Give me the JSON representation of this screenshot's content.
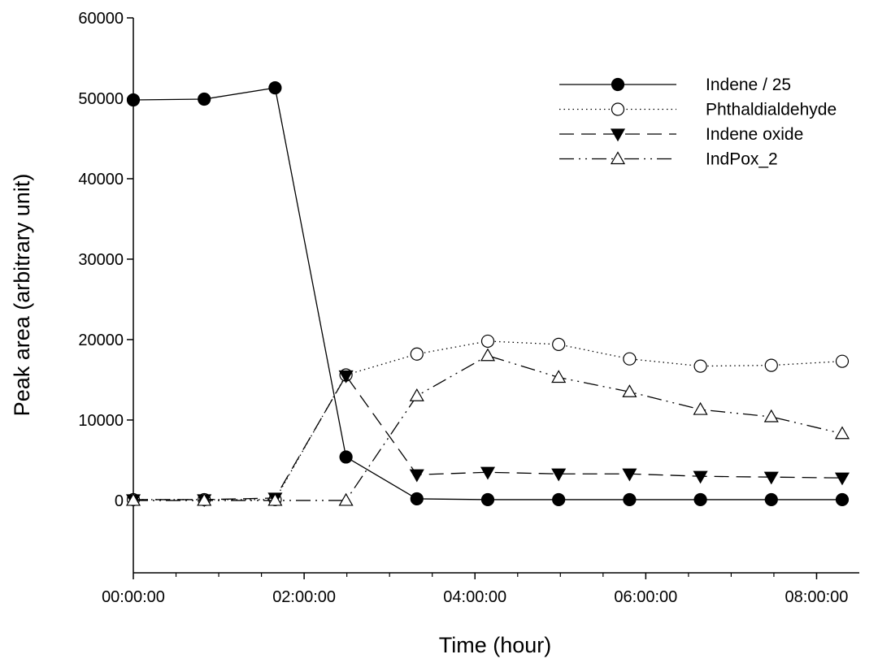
{
  "chart_data": {
    "type": "line",
    "xlabel": "Time (hour)",
    "ylabel": "Peak area (arbitrary unit)",
    "x_unit": "hours",
    "xlim": [
      0,
      8.5
    ],
    "ylim": [
      -9000,
      60000
    ],
    "x_ticks": [
      {
        "value": 0,
        "label": "00:00:00"
      },
      {
        "value": 2,
        "label": "02:00:00"
      },
      {
        "value": 4,
        "label": "04:00:00"
      },
      {
        "value": 6,
        "label": "06:00:00"
      },
      {
        "value": 8,
        "label": "08:00:00"
      }
    ],
    "x_minor_ticks": [
      0.5,
      1,
      1.5,
      2.5,
      3,
      3.5,
      4.5,
      5,
      5.5,
      6.5,
      7,
      7.5,
      8
    ],
    "y_ticks": [
      0,
      10000,
      20000,
      30000,
      40000,
      50000,
      60000
    ],
    "x": [
      0,
      0.83,
      1.66,
      2.49,
      3.32,
      4.15,
      4.98,
      5.81,
      6.64,
      7.47,
      8.3
    ],
    "grid": false,
    "legend_position": "top-right",
    "series": [
      {
        "name": "Indene / 25",
        "marker": "filled-circle",
        "dash": "solid",
        "values": [
          49800,
          49900,
          51300,
          5400,
          200,
          100,
          100,
          100,
          100,
          100,
          100
        ]
      },
      {
        "name": "Phthaldialdehyde",
        "marker": "open-circle",
        "dash": "dotted",
        "values": [
          100,
          100,
          100,
          15600,
          18200,
          19800,
          19400,
          17600,
          16700,
          16800,
          17300
        ]
      },
      {
        "name": "Indene oxide",
        "marker": "filled-triangle-down",
        "dash": "dashed",
        "values": [
          100,
          100,
          300,
          15500,
          3200,
          3500,
          3300,
          3300,
          3000,
          2900,
          2800
        ]
      },
      {
        "name": "IndPox_2",
        "marker": "open-triangle-up",
        "dash": "dash-dot-dot",
        "values": [
          0,
          0,
          0,
          0,
          13000,
          18000,
          15300,
          13500,
          11300,
          10400,
          8300
        ]
      }
    ]
  }
}
